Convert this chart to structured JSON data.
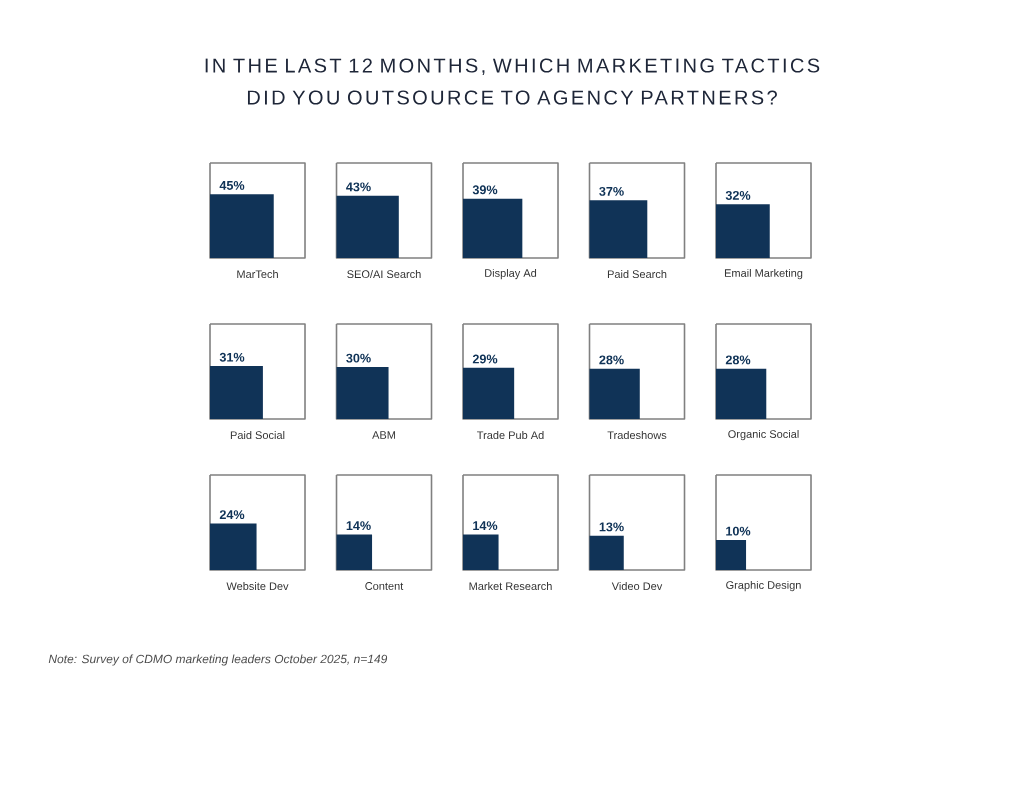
{
  "chart_data": {
    "type": "other",
    "title": "IN THE LAST 12 MONTHS, WHICH MARKETING TACTICS DID YOU OUTSOURCE TO AGENCY PARTNERS?",
    "categories": [
      "MarTech",
      "SEO/AI Search",
      "Display Ad",
      "Paid Search",
      "Email Marketing",
      "Paid Social",
      "ABM",
      "Trade Pub Ad",
      "Tradeshows",
      "Organic Social",
      "Website Dev",
      "Content",
      "Market Research",
      "Video Dev",
      "Graphic Design"
    ],
    "values": [
      45,
      43,
      39,
      37,
      32,
      31,
      30,
      29,
      28,
      28,
      24,
      14,
      14,
      13,
      10
    ],
    "value_labels": [
      "45%",
      "43%",
      "39%",
      "37%",
      "32%",
      "31%",
      "30%",
      "29%",
      "28%",
      "28%",
      "24%",
      "14%",
      "14%",
      "13%",
      "10%"
    ],
    "color": "#103357",
    "annotations": [
      "Note: Survey of CDMO marketing leaders October 2025, n=149"
    ]
  }
}
